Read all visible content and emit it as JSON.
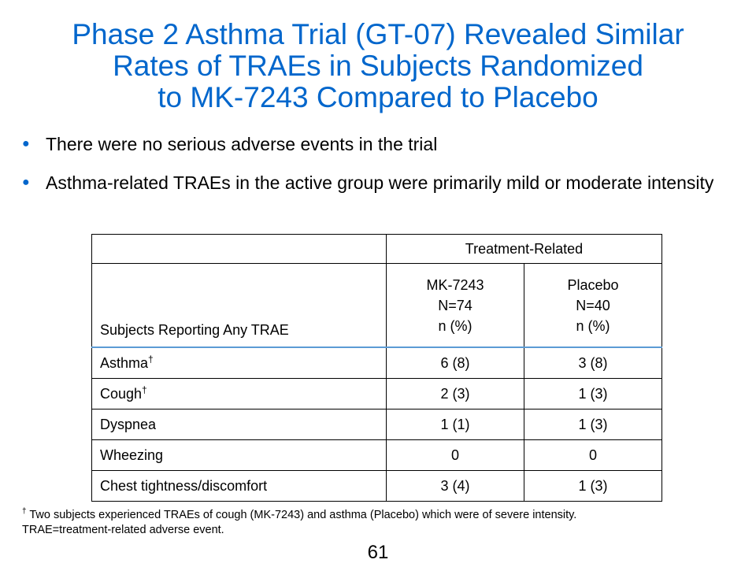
{
  "title": {
    "line1": "Phase 2 Asthma Trial (GT-07) Revealed Similar",
    "line2": "Rates of TRAEs in Subjects Randomized",
    "line3": "to MK-7243 Compared to Placebo"
  },
  "bullets": [
    "There were no serious adverse events in the trial",
    "Asthma-related TRAEs in the active group were primarily mild or moderate intensity"
  ],
  "bullet_marker": "●",
  "colors": {
    "title": "#0066cc",
    "header_rule": "#5b9bd5"
  },
  "table": {
    "group_header": "Treatment-Related",
    "row_header_label": "Subjects Reporting Any TRAE",
    "columns": [
      {
        "name": "MK-7243",
        "n": "N=74",
        "unit": "n (%)"
      },
      {
        "name": "Placebo",
        "n": "N=40",
        "unit": "n (%)"
      }
    ],
    "rows": [
      {
        "label": "Asthma",
        "mark": "†",
        "values": [
          "6 (8)",
          "3 (8)"
        ]
      },
      {
        "label": "Cough",
        "mark": "†",
        "values": [
          "2 (3)",
          "1 (3)"
        ]
      },
      {
        "label": "Dyspnea",
        "mark": "",
        "values": [
          "1 (1)",
          "1 (3)"
        ]
      },
      {
        "label": "Wheezing",
        "mark": "",
        "values": [
          "0",
          "0"
        ]
      },
      {
        "label": "Chest tightness/discomfort",
        "mark": "",
        "values": [
          "3 (4)",
          "1 (3)"
        ]
      }
    ]
  },
  "footnote": {
    "mark": "†",
    "line1": "Two subjects experienced TRAEs of cough (MK-7243) and asthma (Placebo) which were of severe intensity.",
    "line2": "TRAE=treatment-related adverse event."
  },
  "page_number": "61"
}
